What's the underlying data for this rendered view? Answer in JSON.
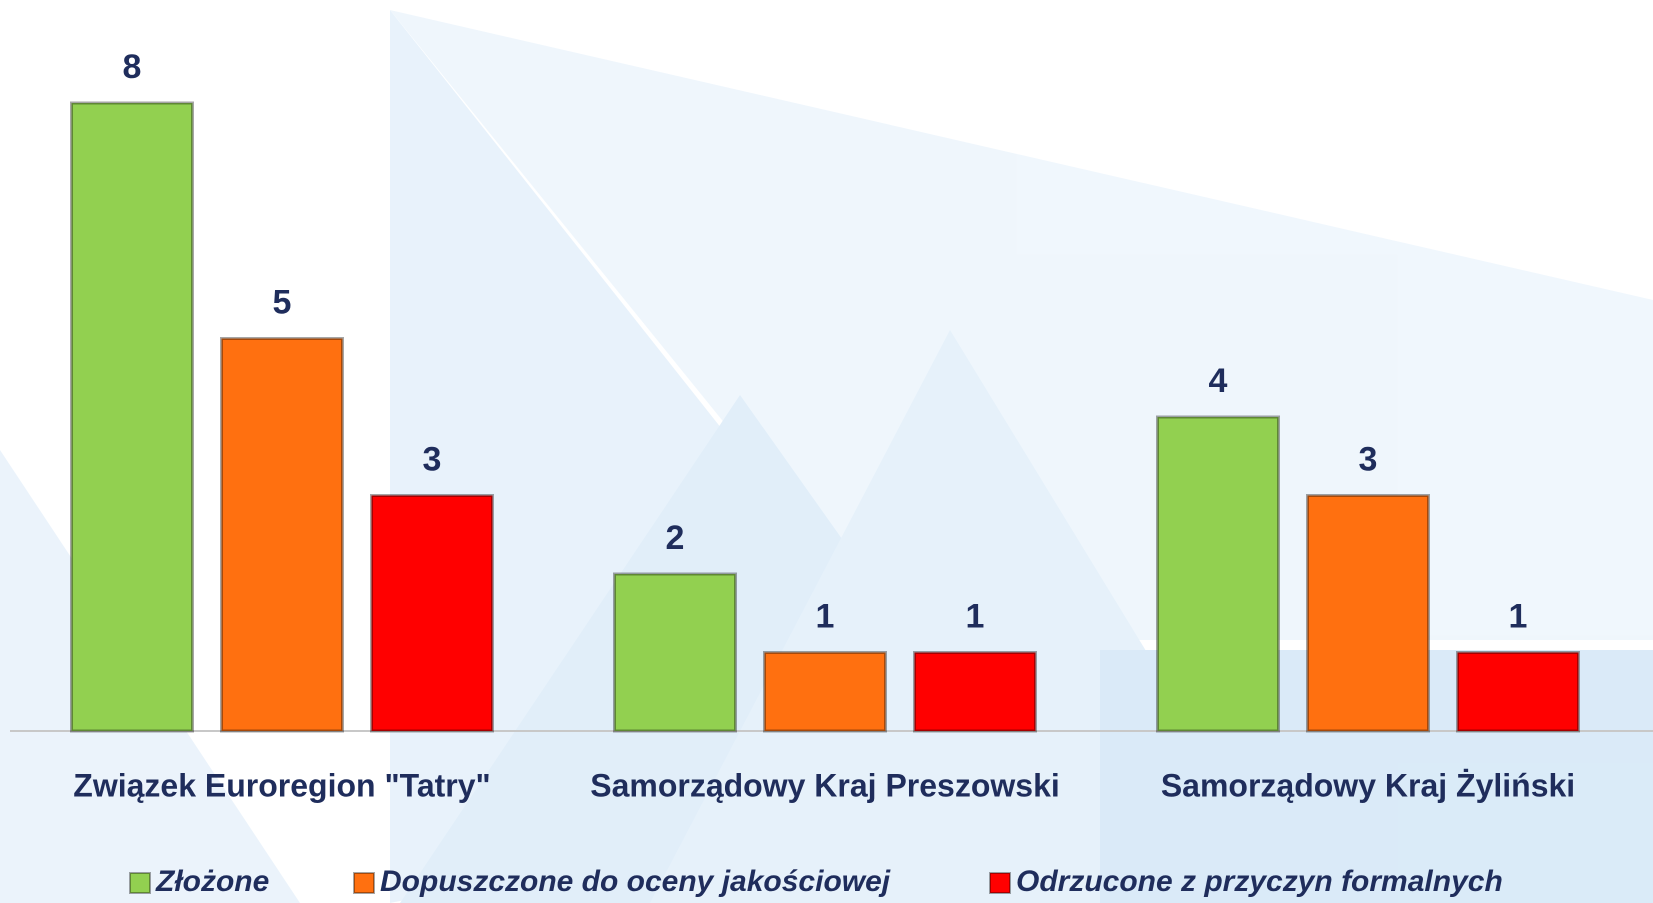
{
  "chart_data": {
    "type": "bar",
    "categories": [
      "Związek Euroregion \"Tatry\"",
      "Samorządowy Kraj Preszowski",
      "Samorządowy Kraj Żyliński"
    ],
    "series": [
      {
        "name": "Złożone",
        "color": "#92d050",
        "values": [
          8,
          2,
          4
        ]
      },
      {
        "name": "Dopuszczone do oceny jakościowej",
        "color": "#ff7010",
        "values": [
          5,
          1,
          3
        ]
      },
      {
        "name": "Odrzucone z przyczyn formalnych",
        "color": "#ff0000",
        "values": [
          3,
          1,
          1
        ]
      }
    ],
    "ylim": [
      0,
      8
    ],
    "legend": "bottom"
  }
}
